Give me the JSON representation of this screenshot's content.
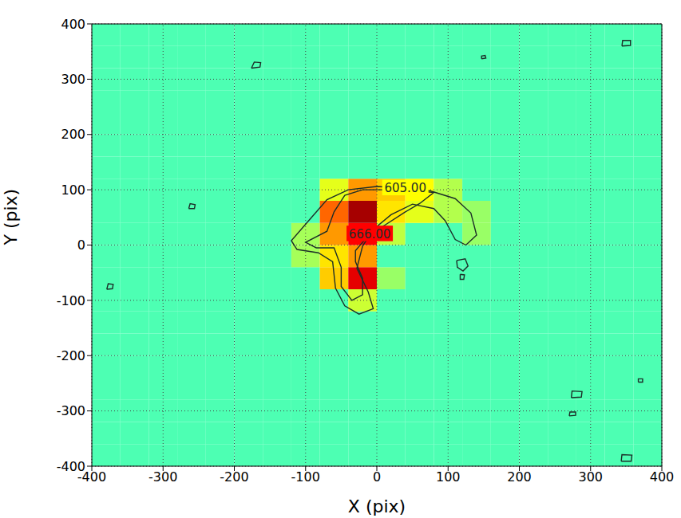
{
  "chart_data": {
    "type": "heatmap",
    "x_label": "X (pix)",
    "y_label": "Y (pix)",
    "xlim": [
      -400,
      400
    ],
    "ylim": [
      -400,
      400
    ],
    "xticks": [
      -400,
      -300,
      -200,
      -100,
      0,
      100,
      200,
      300,
      400
    ],
    "yticks": [
      -400,
      -300,
      -200,
      -100,
      0,
      100,
      200,
      300,
      400
    ],
    "grid": true,
    "zlim": [
      400,
      800
    ],
    "cell_x_edges": [
      -400,
      -360,
      -320,
      -280,
      -240,
      -200,
      -160,
      -120,
      -80,
      -40,
      0,
      40,
      80,
      120,
      160,
      200,
      240,
      280,
      320,
      360,
      400
    ],
    "cell_y_edges": [
      -400,
      -360,
      -320,
      -280,
      -240,
      -200,
      -160,
      -120,
      -80,
      -40,
      0,
      40,
      80,
      120,
      160,
      200,
      240,
      280,
      320,
      360,
      400
    ],
    "cells": [
      [
        580,
        580,
        580,
        580,
        580,
        580,
        580,
        580,
        580,
        580,
        580,
        580,
        580,
        580,
        580,
        580,
        580,
        580,
        580,
        580
      ],
      [
        580,
        580,
        580,
        580,
        580,
        580,
        580,
        580,
        580,
        580,
        580,
        580,
        580,
        580,
        580,
        580,
        580,
        580,
        580,
        580
      ],
      [
        580,
        580,
        580,
        580,
        580,
        580,
        580,
        580,
        580,
        580,
        580,
        580,
        580,
        580,
        580,
        580,
        580,
        580,
        580,
        580
      ],
      [
        580,
        580,
        580,
        580,
        580,
        580,
        580,
        580,
        580,
        580,
        580,
        580,
        580,
        580,
        580,
        580,
        580,
        580,
        580,
        580
      ],
      [
        580,
        580,
        580,
        580,
        580,
        580,
        580,
        580,
        580,
        580,
        580,
        580,
        580,
        580,
        580,
        580,
        580,
        580,
        580,
        580
      ],
      [
        580,
        580,
        580,
        580,
        580,
        580,
        580,
        580,
        580,
        580,
        580,
        580,
        580,
        580,
        580,
        580,
        580,
        580,
        580,
        580
      ],
      [
        580,
        580,
        580,
        580,
        580,
        580,
        580,
        580,
        580,
        580,
        580,
        580,
        580,
        580,
        580,
        580,
        580,
        580,
        580,
        580
      ],
      [
        580,
        580,
        580,
        580,
        580,
        580,
        580,
        580,
        580,
        630,
        580,
        580,
        580,
        580,
        580,
        580,
        580,
        580,
        580,
        580
      ],
      [
        580,
        580,
        580,
        580,
        580,
        580,
        580,
        580,
        670,
        760,
        610,
        580,
        580,
        580,
        580,
        580,
        580,
        580,
        580,
        580
      ],
      [
        580,
        580,
        580,
        580,
        580,
        580,
        580,
        615,
        660,
        690,
        580,
        580,
        580,
        580,
        580,
        580,
        580,
        580,
        580,
        580
      ],
      [
        580,
        580,
        580,
        580,
        580,
        580,
        580,
        615,
        690,
        750,
        625,
        580,
        580,
        610,
        580,
        580,
        580,
        580,
        580,
        580
      ],
      [
        580,
        580,
        580,
        580,
        580,
        580,
        580,
        580,
        710,
        785,
        660,
        640,
        620,
        610,
        580,
        580,
        580,
        580,
        580,
        580
      ],
      [
        580,
        580,
        580,
        580,
        580,
        580,
        580,
        580,
        640,
        690,
        670,
        650,
        620,
        580,
        580,
        580,
        580,
        580,
        580,
        580
      ],
      [
        580,
        580,
        580,
        580,
        580,
        580,
        580,
        580,
        580,
        580,
        580,
        580,
        580,
        580,
        580,
        580,
        580,
        580,
        580,
        580
      ],
      [
        580,
        580,
        580,
        580,
        580,
        580,
        580,
        580,
        580,
        580,
        580,
        580,
        580,
        580,
        580,
        580,
        580,
        580,
        580,
        580
      ],
      [
        580,
        580,
        580,
        580,
        580,
        580,
        580,
        580,
        580,
        580,
        580,
        580,
        580,
        580,
        580,
        580,
        580,
        580,
        580,
        580
      ],
      [
        580,
        580,
        580,
        580,
        580,
        580,
        580,
        580,
        580,
        580,
        580,
        580,
        580,
        580,
        580,
        580,
        580,
        580,
        580,
        580
      ],
      [
        580,
        580,
        580,
        580,
        580,
        580,
        580,
        580,
        580,
        580,
        580,
        580,
        580,
        580,
        580,
        580,
        580,
        580,
        580,
        580
      ],
      [
        580,
        580,
        580,
        580,
        580,
        580,
        580,
        580,
        580,
        580,
        580,
        580,
        580,
        580,
        580,
        580,
        580,
        580,
        580,
        580
      ],
      [
        580,
        580,
        580,
        580,
        580,
        580,
        580,
        580,
        580,
        580,
        580,
        580,
        580,
        580,
        580,
        580,
        580,
        580,
        580,
        580
      ]
    ],
    "contours": [
      {
        "level": 605,
        "label": "605.00",
        "paths": [
          [
            [
              40,
              103
            ],
            [
              0,
              106
            ],
            [
              -40,
              100
            ],
            [
              -70,
              82
            ],
            [
              -95,
              45
            ],
            [
              -120,
              8
            ],
            [
              -112,
              -8
            ],
            [
              -82,
              -14
            ],
            [
              -62,
              -30
            ],
            [
              -58,
              -78
            ],
            [
              -45,
              -110
            ],
            [
              -25,
              -125
            ],
            [
              -5,
              -115
            ],
            [
              -12,
              -85
            ],
            [
              -28,
              -42
            ],
            [
              -20,
              -2
            ],
            [
              -5,
              28
            ],
            [
              20,
              55
            ],
            [
              50,
              74
            ],
            [
              80,
              66
            ],
            [
              96,
              44
            ],
            [
              110,
              10
            ],
            [
              125,
              0
            ],
            [
              140,
              18
            ],
            [
              132,
              58
            ],
            [
              110,
              84
            ],
            [
              75,
              98
            ],
            [
              40,
              103
            ]
          ],
          [
            [
              112,
              -28
            ],
            [
              124,
              -25
            ],
            [
              128,
              -38
            ],
            [
              121,
              -47
            ],
            [
              113,
              -40
            ],
            [
              112,
              -28
            ]
          ],
          [
            [
              117,
              -53
            ],
            [
              123,
              -54
            ],
            [
              122,
              -62
            ],
            [
              117,
              -62
            ],
            [
              117,
              -53
            ]
          ],
          [
            [
              -176,
              320
            ],
            [
              -164,
              322
            ],
            [
              -163,
              330
            ],
            [
              -172,
              331
            ],
            [
              -176,
              320
            ]
          ],
          [
            [
              -264,
              66
            ],
            [
              -256,
              66
            ],
            [
              -255,
              73
            ],
            [
              -262,
              75
            ],
            [
              -264,
              66
            ]
          ],
          [
            [
              -379,
              -80
            ],
            [
              -371,
              -79
            ],
            [
              -370,
              -71
            ],
            [
              -377,
              -70
            ],
            [
              -379,
              -80
            ]
          ],
          [
            [
              147,
              337
            ],
            [
              153,
              338
            ],
            [
              152,
              343
            ],
            [
              147,
              342
            ],
            [
              147,
              337
            ]
          ],
          [
            [
              344,
              360
            ],
            [
              356,
              361
            ],
            [
              356,
              370
            ],
            [
              345,
              370
            ],
            [
              344,
              360
            ]
          ],
          [
            [
              273,
              -276
            ],
            [
              287,
              -275
            ],
            [
              288,
              -265
            ],
            [
              274,
              -264
            ],
            [
              273,
              -276
            ]
          ],
          [
            [
              270,
              -309
            ],
            [
              279,
              -308
            ],
            [
              279,
              -302
            ],
            [
              271,
              -302
            ],
            [
              270,
              -309
            ]
          ],
          [
            [
              367,
              -248
            ],
            [
              373,
              -248
            ],
            [
              373,
              -242
            ],
            [
              367,
              -242
            ],
            [
              367,
              -248
            ]
          ],
          [
            [
              343,
              -391
            ],
            [
              357,
              -391
            ],
            [
              358,
              -380
            ],
            [
              344,
              -379
            ],
            [
              343,
              -391
            ]
          ]
        ]
      },
      {
        "level": 666,
        "label": "666.00",
        "paths": [
          [
            [
              -10,
              20
            ],
            [
              10,
              35
            ],
            [
              40,
              60
            ],
            [
              60,
              75
            ],
            [
              80,
              95
            ],
            [
              40,
              100
            ],
            [
              -20,
              100
            ],
            [
              -45,
              90
            ],
            [
              -60,
              60
            ],
            [
              -70,
              25
            ],
            [
              -100,
              5
            ],
            [
              -85,
              -5
            ],
            [
              -60,
              -5
            ],
            [
              -50,
              -40
            ],
            [
              -50,
              -75
            ],
            [
              -35,
              -100
            ],
            [
              -20,
              -90
            ],
            [
              -20,
              -60
            ],
            [
              -30,
              -30
            ],
            [
              -30,
              -10
            ],
            [
              -10,
              20
            ]
          ]
        ]
      }
    ]
  }
}
